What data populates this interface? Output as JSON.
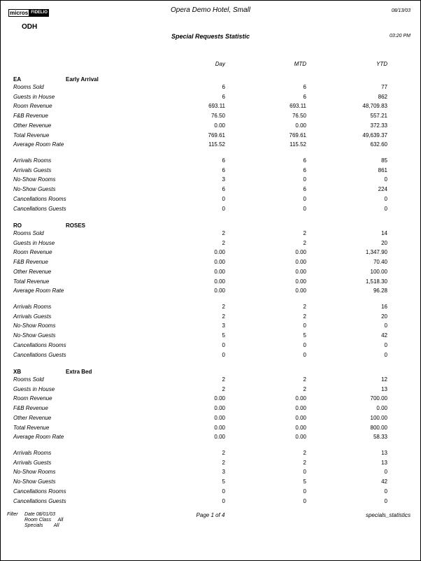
{
  "header": {
    "logo_left": "micros",
    "logo_right": "FIDELIO",
    "property_code": "ODH",
    "hotel_name": "Opera Demo Hotel, Small",
    "report_title": "Special Requests Statistic",
    "date": "08/13/03",
    "time": "03:20 PM"
  },
  "columns": {
    "day": "Day",
    "mtd": "MTD",
    "ytd": "YTD"
  },
  "sections": [
    {
      "code": "EA",
      "name": "Early Arrival",
      "stats": [
        [
          "Rooms Sold",
          "6",
          "6",
          "77"
        ],
        [
          "Guests in House",
          "6",
          "6",
          "862"
        ],
        [
          "Room Revenue",
          "693.11",
          "693.11",
          "48,709.83"
        ],
        [
          "F&B Revenue",
          "76.50",
          "76.50",
          "557.21"
        ],
        [
          "Other Revenue",
          "0.00",
          "0.00",
          "372.33"
        ],
        [
          "Total Revenue",
          "769.61",
          "769.61",
          "49,639.37"
        ],
        [
          "Average Room Rate",
          "115.52",
          "115.52",
          "632.60"
        ]
      ],
      "movements": [
        [
          "Arrivals Rooms",
          "6",
          "6",
          "85"
        ],
        [
          "Arrivals Guests",
          "6",
          "6",
          "861"
        ],
        [
          "No-Show Rooms",
          "3",
          "0",
          "0"
        ],
        [
          "No-Show Guests",
          "6",
          "6",
          "224"
        ],
        [
          "Cancellations Rooms",
          "0",
          "0",
          "0"
        ],
        [
          "Cancellations Guests",
          "0",
          "0",
          "0"
        ]
      ]
    },
    {
      "code": "RO",
      "name": "ROSES",
      "stats": [
        [
          "Rooms Sold",
          "2",
          "2",
          "14"
        ],
        [
          "Guests in House",
          "2",
          "2",
          "20"
        ],
        [
          "Room Revenue",
          "0.00",
          "0.00",
          "1,347.90"
        ],
        [
          "F&B Revenue",
          "0.00",
          "0.00",
          "70.40"
        ],
        [
          "Other Revenue",
          "0.00",
          "0.00",
          "100.00"
        ],
        [
          "Total Revenue",
          "0.00",
          "0.00",
          "1,518.30"
        ],
        [
          "Average Room Rate",
          "0.00",
          "0.00",
          "96.28"
        ]
      ],
      "movements": [
        [
          "Arrivals Rooms",
          "2",
          "2",
          "16"
        ],
        [
          "Arrivals Guests",
          "2",
          "2",
          "20"
        ],
        [
          "No-Show Rooms",
          "3",
          "0",
          "0"
        ],
        [
          "No-Show Guests",
          "5",
          "5",
          "42"
        ],
        [
          "Cancellations Rooms",
          "0",
          "0",
          "0"
        ],
        [
          "Cancellations Guests",
          "0",
          "0",
          "0"
        ]
      ]
    },
    {
      "code": "XB",
      "name": "Extra Bed",
      "stats": [
        [
          "Rooms Sold",
          "2",
          "2",
          "12"
        ],
        [
          "Guests in House",
          "2",
          "2",
          "13"
        ],
        [
          "Room Revenue",
          "0.00",
          "0.00",
          "700.00"
        ],
        [
          "F&B Revenue",
          "0.00",
          "0.00",
          "0.00"
        ],
        [
          "Other Revenue",
          "0.00",
          "0.00",
          "100.00"
        ],
        [
          "Total Revenue",
          "0.00",
          "0.00",
          "800.00"
        ],
        [
          "Average Room Rate",
          "0.00",
          "0.00",
          "58.33"
        ]
      ],
      "movements": [
        [
          "Arrivals Rooms",
          "2",
          "2",
          "13"
        ],
        [
          "Arrivals Guests",
          "2",
          "2",
          "13"
        ],
        [
          "No-Show Rooms",
          "3",
          "0",
          "0"
        ],
        [
          "No-Show Guests",
          "5",
          "5",
          "42"
        ],
        [
          "Cancellations Rooms",
          "0",
          "0",
          "0"
        ],
        [
          "Cancellations Guests",
          "0",
          "0",
          "0"
        ]
      ]
    }
  ],
  "footer": {
    "filter_label": "Filter",
    "filters": [
      "Date 08/01/03",
      "Room Class     All",
      "Specials        All"
    ],
    "page": "Page 1 of 4",
    "report_name": "specials_statistics"
  }
}
